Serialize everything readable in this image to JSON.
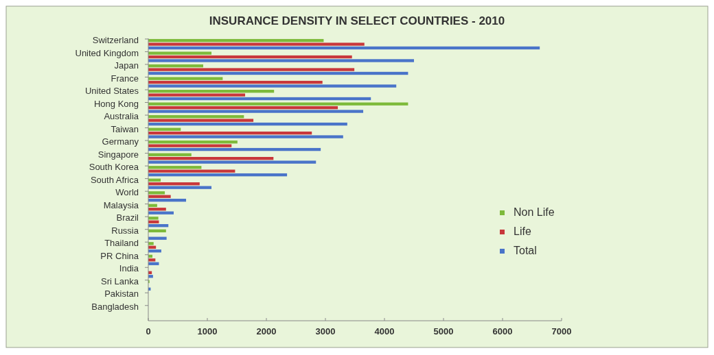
{
  "chart_data": {
    "type": "bar",
    "orientation": "horizontal",
    "title": "INSURANCE DENSITY IN SELECT COUNTRIES - 2010",
    "categories": [
      "Switzerland",
      "United Kingdom",
      "Japan",
      "France",
      "United States",
      "Hong Kong",
      "Australia",
      "Taiwan",
      "Germany",
      "Singapore",
      "South Korea",
      "South Africa",
      "World",
      "Malaysia",
      "Brazil",
      "Russia",
      "Thailand",
      "PR China",
      "India",
      "Sri Lanka",
      "Pakistan",
      "Bangladesh"
    ],
    "series": [
      {
        "name": "Non Life",
        "color": "#7dba3a",
        "values": [
          2970,
          1070,
          930,
          1260,
          2130,
          4400,
          1620,
          550,
          1510,
          730,
          900,
          210,
          280,
          150,
          170,
          300,
          90,
          70,
          null,
          20,
          null,
          null
        ]
      },
      {
        "name": "Life",
        "color": "#c8373b",
        "values": [
          3660,
          3450,
          3490,
          2950,
          1640,
          3210,
          1780,
          2770,
          1410,
          2120,
          1470,
          870,
          380,
          300,
          180,
          null,
          130,
          120,
          60,
          null,
          null,
          null
        ]
      },
      {
        "name": "Total",
        "color": "#4a74c9",
        "values": [
          6630,
          4500,
          4400,
          4200,
          3770,
          3640,
          3370,
          3300,
          2920,
          2840,
          2350,
          1070,
          640,
          430,
          340,
          310,
          220,
          180,
          80,
          40,
          null,
          null
        ]
      }
    ],
    "xlim": [
      0,
      7000
    ],
    "xticks": [
      0,
      1000,
      2000,
      3000,
      4000,
      5000,
      6000,
      7000
    ],
    "legend": "bottom right",
    "grid": false
  }
}
